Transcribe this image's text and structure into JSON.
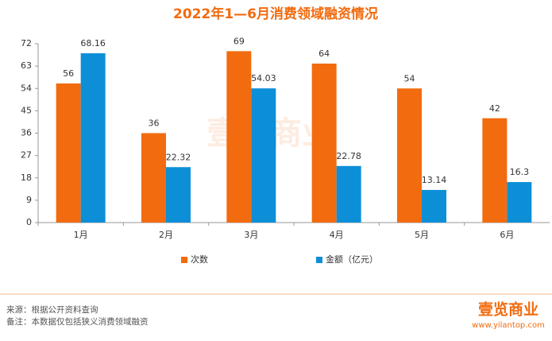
{
  "chart_data": {
    "type": "bar",
    "title": "2022年1—6月消费领域融资情况",
    "categories": [
      "1月",
      "2月",
      "3月",
      "4月",
      "5月",
      "6月"
    ],
    "series": [
      {
        "name": "次数",
        "color": "#f26b0f",
        "values": [
          56,
          36,
          69,
          64,
          54,
          42
        ]
      },
      {
        "name": "金额（亿元）",
        "color": "#0d8fd8",
        "values": [
          68.16,
          22.32,
          54.03,
          22.78,
          13.14,
          16.3
        ]
      }
    ],
    "ylim": [
      0,
      72
    ],
    "yticks": [
      0,
      9,
      18,
      27,
      36,
      45,
      54,
      63,
      72
    ],
    "grid": false,
    "legend": "bottom"
  },
  "footer": {
    "source": "来源：根据公开资料查询",
    "note": "备注：本数据仅包括狭义消费领域融资",
    "logo": "壹览商业",
    "url": "www.yilantop.com"
  }
}
